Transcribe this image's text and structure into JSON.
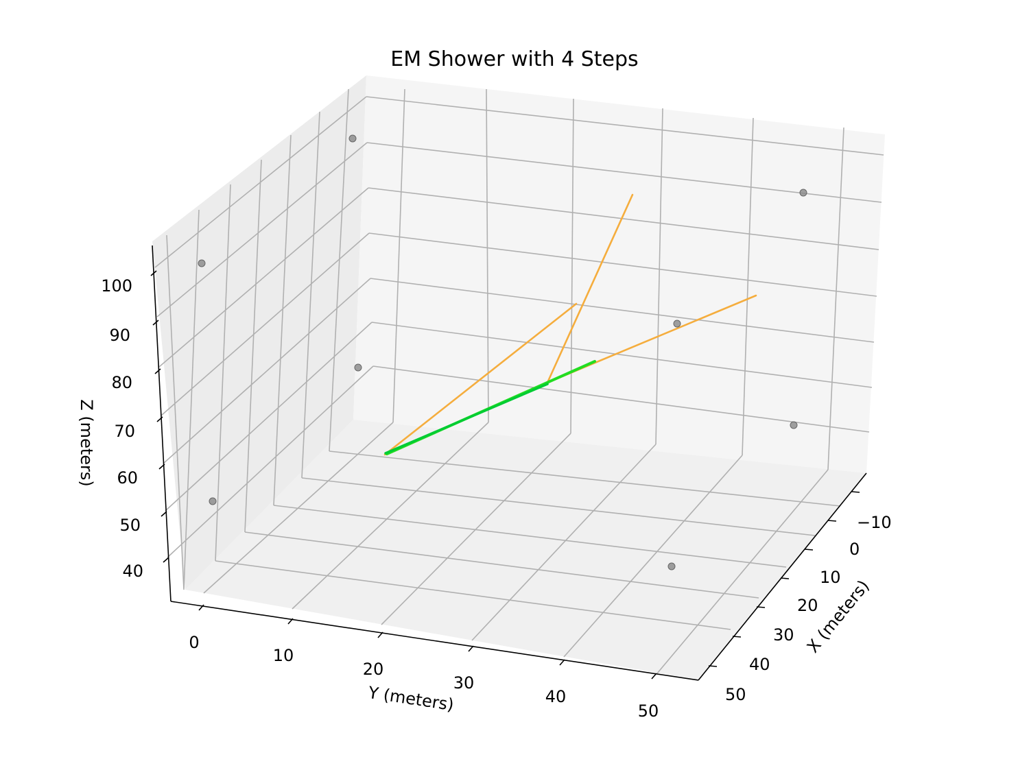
{
  "chart_data": {
    "type": "line3d",
    "title": "EM Shower with 4 Steps",
    "xlabel": "X (meters)",
    "ylabel": "Y (meters)",
    "zlabel": "Z (meters)",
    "x_ticks": [
      "−10",
      "0",
      "10",
      "20",
      "30",
      "40",
      "50"
    ],
    "y_ticks": [
      "0",
      "10",
      "20",
      "30",
      "40",
      "50"
    ],
    "z_ticks": [
      "40",
      "50",
      "60",
      "70",
      "80",
      "90",
      "100"
    ],
    "grid": true,
    "colors": {
      "primary_track": "#00cc33",
      "primary_track_secondary": "#22dd22",
      "secondary_tracks": "#f5ad3d",
      "hits": "#888888",
      "pane_left": "#ececec",
      "pane_right": "#f5f5f5",
      "pane_floor": "#f0f0f0"
    }
  }
}
